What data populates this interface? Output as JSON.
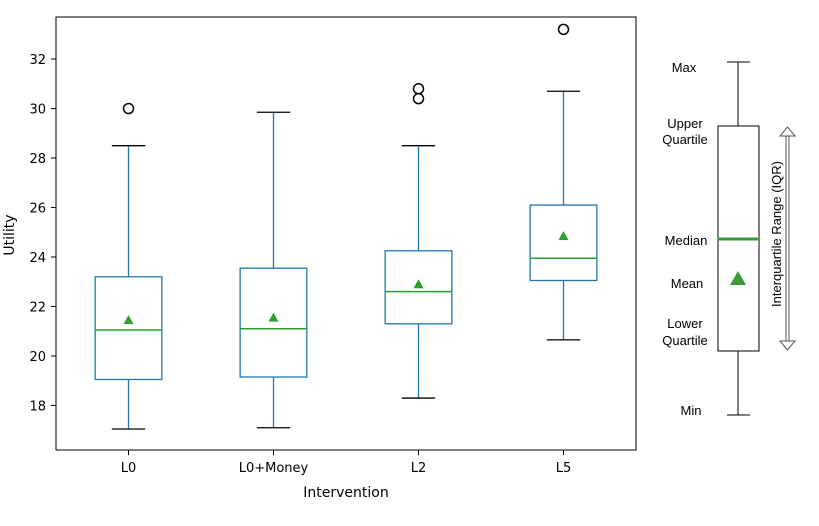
{
  "chart_data": {
    "type": "box",
    "xlabel": "Intervention",
    "ylabel": "Utility",
    "ylim": [
      16.2,
      33.7
    ],
    "yticks": [
      18,
      20,
      22,
      24,
      26,
      28,
      30,
      32
    ],
    "grid": false,
    "categories": [
      "L0",
      "L0+Money",
      "L2",
      "L5"
    ],
    "boxes": [
      {
        "whisker_low": 17.05,
        "q1": 19.05,
        "median": 21.05,
        "mean": 21.45,
        "q3": 23.2,
        "whisker_high": 28.5,
        "outliers": [
          30.0
        ]
      },
      {
        "whisker_low": 17.1,
        "q1": 19.15,
        "median": 21.1,
        "mean": 21.55,
        "q3": 23.55,
        "whisker_high": 29.85,
        "outliers": []
      },
      {
        "whisker_low": 18.3,
        "q1": 21.3,
        "median": 22.6,
        "mean": 22.9,
        "q3": 24.25,
        "whisker_high": 28.5,
        "outliers": [
          30.4,
          30.8
        ]
      },
      {
        "whisker_low": 20.65,
        "q1": 23.05,
        "median": 23.95,
        "mean": 24.85,
        "q3": 26.1,
        "whisker_high": 30.7,
        "outliers": [
          33.2
        ]
      }
    ],
    "colors": {
      "box": "#1f77b4",
      "median": "#2ca02c",
      "mean": "#2ca02c",
      "whisker_cap": "#000000",
      "outlier": "#000000"
    }
  },
  "legend": {
    "max": "Max",
    "upper_quartile_line1": "Upper",
    "upper_quartile_line2": "Quartile",
    "median": "Median",
    "mean": "Mean",
    "lower_quartile_line1": "Lower",
    "lower_quartile_line2": "Quartile",
    "min": "Min",
    "iqr": "Interquartile Range (IQR)",
    "colors": {
      "box": "#000000",
      "median": "#3a9a3a",
      "mean": "#3a9a3a",
      "arrow": "#555555"
    }
  }
}
